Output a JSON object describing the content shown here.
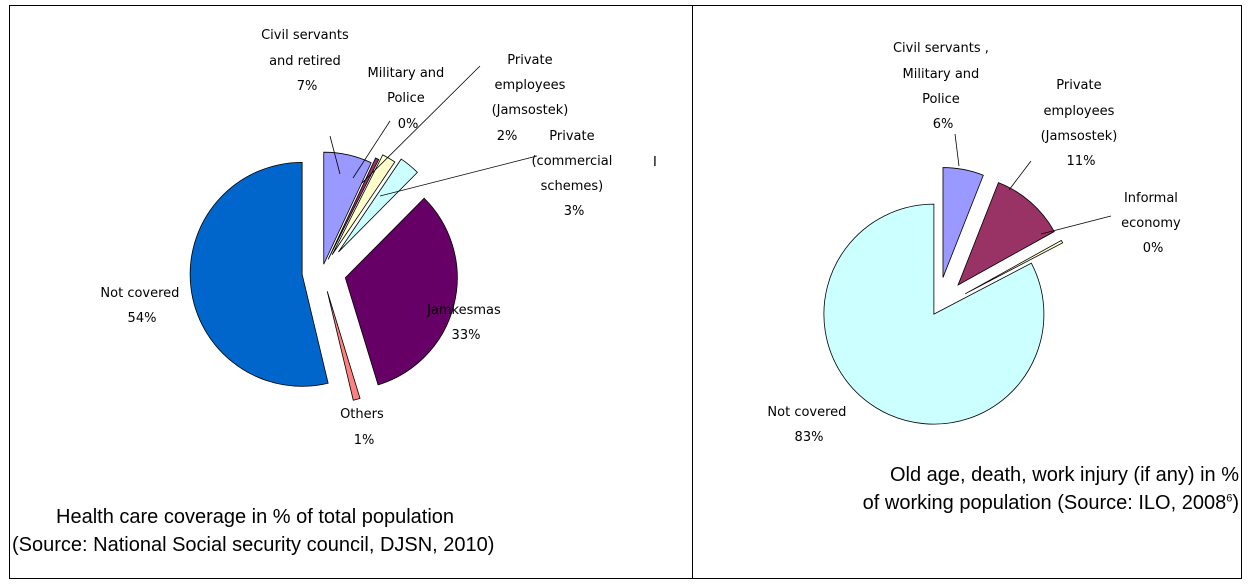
{
  "chart_data": [
    {
      "type": "pie",
      "title": "Health care coverage in % of total population (Source: National Social security council, DJSN, 2010)",
      "slices": [
        {
          "label": "Civil servants and retired",
          "value": 7,
          "pct_label": "7%",
          "color": "#9999ff"
        },
        {
          "label": "Military and Police",
          "value": 0.5,
          "pct_label": "0%",
          "color": "#993366"
        },
        {
          "label": "Private employees (Jamsostek)",
          "value": 2,
          "pct_label": "2%",
          "color": "#ffffcc"
        },
        {
          "label": "Private (commercial schemes)",
          "value": 3,
          "pct_label": "3%",
          "color": "#ccffff"
        },
        {
          "label": "Jamkesmas",
          "value": 33,
          "pct_label": "33%",
          "color": "#660066"
        },
        {
          "label": "Others",
          "value": 1,
          "pct_label": "1%",
          "color": "#ff8080"
        },
        {
          "label": "Not covered",
          "value": 54,
          "pct_label": "54%",
          "color": "#0066cc"
        }
      ]
    },
    {
      "type": "pie",
      "title": "Old age, death, work injury (if any) in % of working population (Source: ILO, 2008)",
      "slices": [
        {
          "label": "Civil servants, Military and Police",
          "value": 6,
          "pct_label": "6%",
          "color": "#9999ff"
        },
        {
          "label": "Private employees (Jamsostek)",
          "value": 11,
          "pct_label": "11%",
          "color": "#993366"
        },
        {
          "label": "Informal economy",
          "value": 0.4,
          "pct_label": "0%",
          "color": "#ffffcc"
        },
        {
          "label": "Not covered",
          "value": 83,
          "pct_label": "83%",
          "color": "#ccffff"
        }
      ]
    }
  ],
  "left": {
    "labels": {
      "civil": [
        "Civil servants",
        "and retired",
        "7%"
      ],
      "military": [
        "Military and",
        "Police",
        "0%"
      ],
      "private_emp": [
        "Private",
        "employees",
        "(Jamsostek)",
        "2%"
      ],
      "private_comm": [
        "Private",
        "(commercial",
        "schemes)",
        "3%"
      ],
      "stray": "I",
      "jamkesmas": [
        "Jamkesmas",
        "33%"
      ],
      "others": [
        "Others",
        "1%"
      ],
      "not_covered": [
        "Not covered",
        "54%"
      ]
    },
    "caption_line1_a": "Health care coverage in % of total population",
    "caption_line2": "(Source: National Social security council, DJSN, 2010)"
  },
  "right": {
    "labels": {
      "civil": [
        "Civil servants ,",
        "Military and",
        "Police",
        "6%"
      ],
      "private_emp": [
        "Private",
        "employees",
        "(Jamsostek)",
        "11%"
      ],
      "informal": [
        "Informal",
        "economy",
        "0%"
      ],
      "not_covered": [
        "Not covered",
        "83%"
      ]
    },
    "caption_line1": "Old age, death, work injury (if any) in %",
    "caption_line2_a": "of working population (Source: ILO, 2008",
    "caption_sup": "6",
    "caption_line2_b": ")"
  }
}
